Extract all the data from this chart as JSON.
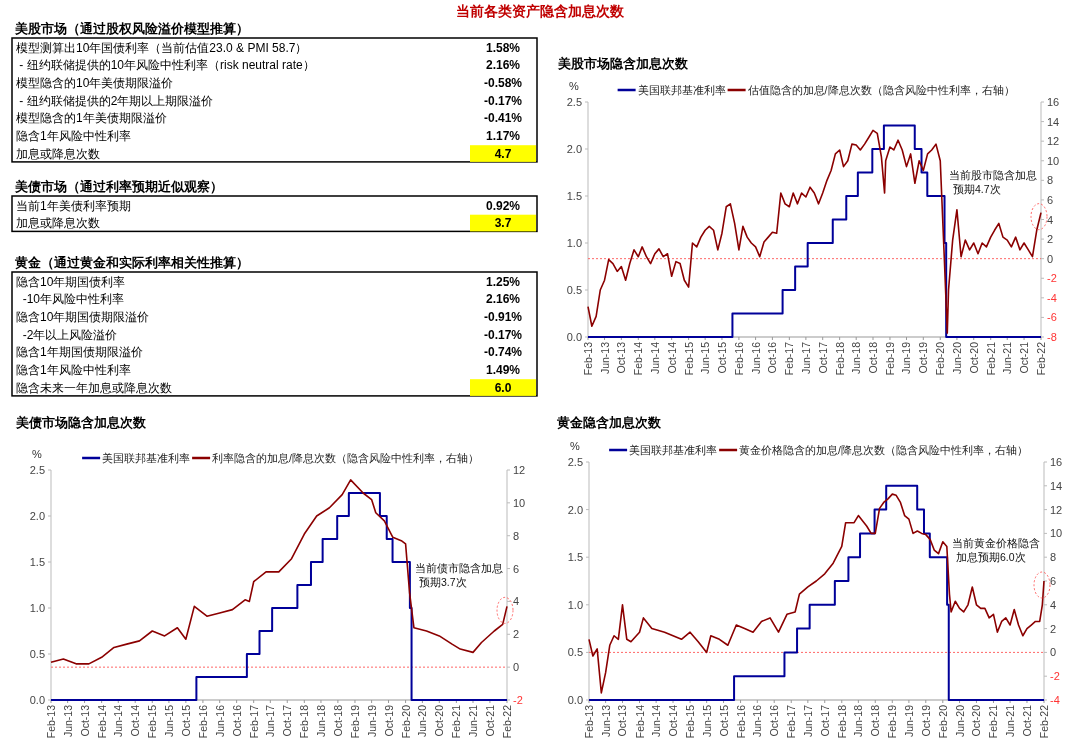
{
  "chart_data": [
    {
      "type": "other",
      "title": "当前各类资产隐含加息次数"
    },
    {
      "type": "other",
      "title": "美股市场（通过股权风险溢价模型推算）",
      "categories": [
        "模型测算出10年国债利率（当前估值23.0 & PMI 58.7）",
        " - 纽约联储提供的10年风险中性利率（risk neutral rate）",
        "模型隐含的10年美债期限溢价",
        " - 纽约联储提供的2年期以上期限溢价",
        "模型隐含的1年美债期限溢价",
        "隐含1年风险中性利率",
        "加息或降息次数"
      ],
      "value_labels": [
        "1.58%",
        "2.16%",
        "-0.58%",
        "-0.17%",
        "-0.41%",
        "1.17%",
        "4.7"
      ],
      "colors": [
        null,
        null,
        null,
        null,
        null,
        null,
        "#ffff00"
      ]
    },
    {
      "type": "other",
      "title": "美债市场（通过利率预期近似观察）",
      "categories": [
        "当前1年美债利率预期",
        "加息或降息次数"
      ],
      "value_labels": [
        "0.92%",
        "3.7"
      ],
      "colors": [
        null,
        "#ffff00"
      ]
    },
    {
      "type": "other",
      "title": "黄金（通过黄金和实际利率相关性推算）",
      "categories": [
        "隐含10年期国债利率",
        "  -10年风险中性利率",
        "隐含10年期国债期限溢价",
        "  -2年以上风险溢价",
        "隐含1年期国债期限溢价",
        "隐含1年风险中性利率",
        "隐含未来一年加息或降息次数"
      ],
      "value_labels": [
        "1.25%",
        "2.16%",
        "-0.91%",
        "-0.17%",
        "-0.74%",
        "1.49%",
        "6.0"
      ],
      "colors": [
        null,
        null,
        null,
        null,
        null,
        null,
        "#ffff00"
      ]
    },
    {
      "type": "line",
      "title": "美股市场隐含加息次数",
      "ylabel": "%",
      "legend": "top",
      "annotations": [
        "当前股市隐含加息预期4.7次"
      ],
      "xlim": [
        "2013-02",
        "2022-02"
      ],
      "xticks": [
        {
          "value": "2013-02",
          "label": "Feb-13"
        },
        {
          "value": "2013-06",
          "label": "Jun-13"
        },
        {
          "value": "2013-10",
          "label": "Oct-13"
        },
        {
          "value": "2014-02",
          "label": "Feb-14"
        },
        {
          "value": "2014-06",
          "label": "Jun-14"
        },
        {
          "value": "2014-10",
          "label": "Oct-14"
        },
        {
          "value": "2015-02",
          "label": "Feb-15"
        },
        {
          "value": "2015-06",
          "label": "Jun-15"
        },
        {
          "value": "2015-10",
          "label": "Oct-15"
        },
        {
          "value": "2016-02",
          "label": "Feb-16"
        },
        {
          "value": "2016-06",
          "label": "Jun-16"
        },
        {
          "value": "2016-10",
          "label": "Oct-16"
        },
        {
          "value": "2017-02",
          "label": "Feb-17"
        },
        {
          "value": "2017-06",
          "label": "Jun-17"
        },
        {
          "value": "2017-10",
          "label": "Oct-17"
        },
        {
          "value": "2018-02",
          "label": "Feb-18"
        },
        {
          "value": "2018-06",
          "label": "Jun-18"
        },
        {
          "value": "2018-10",
          "label": "Oct-18"
        },
        {
          "value": "2019-02",
          "label": "Feb-19"
        },
        {
          "value": "2019-06",
          "label": "Jun-19"
        },
        {
          "value": "2019-10",
          "label": "Oct-19"
        },
        {
          "value": "2020-02",
          "label": "Feb-20"
        },
        {
          "value": "2020-06",
          "label": "Jun-20"
        },
        {
          "value": "2020-10",
          "label": "Oct-20"
        },
        {
          "value": "2021-02",
          "label": "Feb-21"
        },
        {
          "value": "2021-06",
          "label": "Jun-21"
        },
        {
          "value": "2021-10",
          "label": "Oct-21"
        },
        {
          "value": "2022-02",
          "label": "Feb-22"
        }
      ],
      "ylim": [
        0,
        2.5
      ],
      "yticks": [
        {
          "value": 0,
          "label": "0.0"
        },
        0.5,
        {
          "value": 1,
          "label": "1.0"
        },
        1.5,
        {
          "value": 2,
          "label": "2.0"
        },
        2.5
      ],
      "y2lim": [
        -8,
        16
      ],
      "y2ticks": [
        -8,
        -6,
        -4,
        -2,
        0,
        2,
        4,
        6,
        8,
        10,
        12,
        14,
        16
      ],
      "ref_lines": [
        {
          "axis": "y2",
          "value": 0,
          "color": "#ff6666",
          "line_style": "dotted"
        }
      ],
      "series": [
        {
          "name": "美国联邦基准利率",
          "type": "step",
          "color": "#000099",
          "x": [
            "2013-02",
            "2015-12-16",
            "2016-12-14",
            "2017-03-15",
            "2017-06-14",
            "2017-12-13",
            "2018-03-21",
            "2018-06-13",
            "2018-09-26",
            "2018-12-19",
            "2019-07-31",
            "2019-09-18",
            "2019-10-30",
            "2020-03-03",
            "2020-03-15",
            "2022-02"
          ],
          "values": [
            0,
            0.25,
            0.5,
            0.75,
            1.0,
            1.25,
            1.5,
            1.75,
            2.0,
            2.25,
            2.0,
            1.75,
            1.5,
            1.0,
            0,
            0
          ]
        },
        {
          "name": "估值隐含的加息/降息次数（隐含风险中性利率，右轴）",
          "axis": "y2",
          "color": "#8b0000",
          "x": [
            "2013-02",
            "2013-03",
            "2013-04",
            "2013-05",
            "2013-06",
            "2013-07",
            "2013-08",
            "2013-09",
            "2013-10",
            "2013-11",
            "2013-12",
            "2014-01",
            "2014-02",
            "2014-03",
            "2014-04",
            "2014-05",
            "2014-06",
            "2014-07",
            "2014-08",
            "2014-09",
            "2014-10",
            "2014-11",
            "2014-12",
            "2015-01",
            "2015-02",
            "2015-03",
            "2015-04",
            "2015-05",
            "2015-06",
            "2015-07",
            "2015-08",
            "2015-09",
            "2015-10",
            "2015-11",
            "2015-12",
            "2016-01",
            "2016-02",
            "2016-03",
            "2016-04",
            "2016-05",
            "2016-06",
            "2016-07",
            "2016-08",
            "2016-09",
            "2016-10",
            "2016-11",
            "2016-12",
            "2017-01",
            "2017-02",
            "2017-03",
            "2017-04",
            "2017-05",
            "2017-06",
            "2017-07",
            "2017-08",
            "2017-09",
            "2017-10",
            "2017-11",
            "2017-12",
            "2018-01",
            "2018-02",
            "2018-03",
            "2018-04",
            "2018-05",
            "2018-06",
            "2018-07",
            "2018-08",
            "2018-09",
            "2018-10",
            "2018-11",
            "2018-12",
            "2018-12-24",
            "2019-01",
            "2019-02",
            "2019-03",
            "2019-04",
            "2019-05",
            "2019-06",
            "2019-07",
            "2019-08",
            "2019-09",
            "2019-10",
            "2019-11",
            "2019-12",
            "2020-01",
            "2020-02",
            "2020-03",
            "2020-03-23",
            "2020-04",
            "2020-05",
            "2020-06",
            "2020-07",
            "2020-08",
            "2020-09",
            "2020-10",
            "2020-11",
            "2020-12",
            "2021-01",
            "2021-02",
            "2021-03",
            "2021-04",
            "2021-05",
            "2021-06",
            "2021-07",
            "2021-08",
            "2021-09",
            "2021-10",
            "2021-11",
            "2021-12",
            "2022-01",
            "2022-02"
          ],
          "values": [
            -4.9,
            -6.9,
            -5.9,
            -3.2,
            -2.2,
            -0.1,
            -0.5,
            -1.3,
            -0.8,
            -2.2,
            -0.5,
            0.9,
            0.2,
            1.2,
            0.2,
            -0.5,
            0.5,
            1.0,
            0.2,
            0.5,
            -1.8,
            -0.3,
            -0.5,
            -2.2,
            -2.9,
            1.6,
            1.2,
            2.2,
            2.9,
            3.3,
            2.9,
            0.9,
            2.6,
            5.3,
            5.6,
            3.6,
            0.9,
            3.3,
            2.2,
            1.6,
            1.2,
            0.2,
            1.7,
            2.2,
            2.7,
            2.6,
            6.7,
            5.6,
            5.3,
            6.7,
            5.6,
            6.7,
            6.3,
            7.3,
            6.7,
            5.6,
            6.7,
            8.0,
            9.0,
            10.7,
            11.1,
            9.4,
            10.0,
            11.7,
            11.6,
            11.1,
            11.7,
            12.4,
            13.1,
            12.8,
            10.4,
            6.7,
            10.0,
            11.4,
            11.1,
            12.1,
            11.1,
            9.4,
            10.7,
            7.7,
            10.0,
            9.0,
            10.7,
            11.1,
            11.7,
            10.0,
            0.2,
            -7.6,
            -3.2,
            1.9,
            5.0,
            0.2,
            1.9,
            0.9,
            1.6,
            0.5,
            1.6,
            1.2,
            2.2,
            2.9,
            3.6,
            2.2,
            1.9,
            1.2,
            2.2,
            0.9,
            1.6,
            0.9,
            0.2,
            2.9,
            4.7
          ]
        }
      ]
    },
    {
      "type": "line",
      "title": "美债市场隐含加息次数",
      "ylabel": "%",
      "legend": "top",
      "annotations": [
        "当前债市隐含加息预期3.7次"
      ],
      "xlim": [
        "2013-02",
        "2022-02"
      ],
      "xticks": [
        {
          "value": "2013-02",
          "label": "Feb-13"
        },
        {
          "value": "2013-06",
          "label": "Jun-13"
        },
        {
          "value": "2013-10",
          "label": "Oct-13"
        },
        {
          "value": "2014-02",
          "label": "Feb-14"
        },
        {
          "value": "2014-06",
          "label": "Jun-14"
        },
        {
          "value": "2014-10",
          "label": "Oct-14"
        },
        {
          "value": "2015-02",
          "label": "Feb-15"
        },
        {
          "value": "2015-06",
          "label": "Jun-15"
        },
        {
          "value": "2015-10",
          "label": "Oct-15"
        },
        {
          "value": "2016-02",
          "label": "Feb-16"
        },
        {
          "value": "2016-06",
          "label": "Jun-16"
        },
        {
          "value": "2016-10",
          "label": "Oct-16"
        },
        {
          "value": "2017-02",
          "label": "Feb-17"
        },
        {
          "value": "2017-06",
          "label": "Jun-17"
        },
        {
          "value": "2017-10",
          "label": "Oct-17"
        },
        {
          "value": "2018-02",
          "label": "Feb-18"
        },
        {
          "value": "2018-06",
          "label": "Jun-18"
        },
        {
          "value": "2018-10",
          "label": "Oct-18"
        },
        {
          "value": "2019-02",
          "label": "Feb-19"
        },
        {
          "value": "2019-06",
          "label": "Jun-19"
        },
        {
          "value": "2019-10",
          "label": "Oct-19"
        },
        {
          "value": "2020-02",
          "label": "Feb-20"
        },
        {
          "value": "2020-06",
          "label": "Jun-20"
        },
        {
          "value": "2020-10",
          "label": "Oct-20"
        },
        {
          "value": "2021-02",
          "label": "Feb-21"
        },
        {
          "value": "2021-06",
          "label": "Jun-21"
        },
        {
          "value": "2021-10",
          "label": "Oct-21"
        },
        {
          "value": "2022-02",
          "label": "Feb-22"
        }
      ],
      "ylim": [
        0,
        2.5
      ],
      "yticks": [
        {
          "value": 0,
          "label": "0.0"
        },
        0.5,
        {
          "value": 1,
          "label": "1.0"
        },
        1.5,
        {
          "value": 2,
          "label": "2.0"
        },
        2.5
      ],
      "y2lim": [
        -2,
        12
      ],
      "y2ticks": [
        -2,
        0,
        2,
        4,
        6,
        8,
        10,
        12
      ],
      "ref_lines": [
        {
          "axis": "y2",
          "value": 0,
          "color": "#ff6666",
          "line_style": "dotted"
        }
      ],
      "series": [
        {
          "name": "美国联邦基准利率",
          "type": "step",
          "color": "#000099",
          "x": [
            "2013-02",
            "2015-12-16",
            "2016-12-14",
            "2017-03-15",
            "2017-06-14",
            "2017-12-13",
            "2018-03-21",
            "2018-06-13",
            "2018-09-26",
            "2018-12-19",
            "2019-07-31",
            "2019-09-18",
            "2019-10-30",
            "2020-03-03",
            "2020-03-15",
            "2022-02"
          ],
          "values": [
            0,
            0.25,
            0.5,
            0.75,
            1.0,
            1.25,
            1.5,
            1.75,
            2.0,
            2.25,
            2.0,
            1.75,
            1.5,
            1.0,
            0,
            0
          ]
        },
        {
          "name": "利率隐含的加息/降息次数（隐含风险中性利率，右轴）",
          "axis": "y2",
          "color": "#8b0000",
          "x": [
            "2013-02",
            "2013-05",
            "2013-08",
            "2013-11",
            "2014-02",
            "2014-05",
            "2014-08",
            "2014-11",
            "2015-02",
            "2015-05",
            "2015-08",
            "2015-10",
            "2015-12",
            "2016-03",
            "2016-06",
            "2016-09",
            "2016-12",
            "2017-01",
            "2017-02",
            "2017-05",
            "2017-08",
            "2017-11",
            "2018-02",
            "2018-05",
            "2018-08",
            "2018-11",
            "2019-01",
            "2019-04",
            "2019-06",
            "2019-07",
            "2019-09",
            "2019-11",
            "2020-01",
            "2020-02",
            "2020-03",
            "2020-04",
            "2020-07",
            "2020-10",
            "2021-01",
            "2021-03",
            "2021-06",
            "2021-08",
            "2021-11",
            "2022-01",
            "2022-02"
          ],
          "values": [
            0.3,
            0.5,
            0.2,
            0.2,
            0.6,
            1.2,
            1.4,
            1.6,
            2.2,
            1.9,
            2.4,
            1.7,
            3.7,
            3.1,
            3.3,
            3.5,
            4.1,
            4.0,
            5.2,
            5.8,
            5.8,
            6.6,
            8.1,
            9.2,
            9.7,
            10.5,
            11.4,
            10.6,
            10.2,
            9.4,
            8.9,
            7.9,
            7.7,
            7.5,
            4.5,
            2.4,
            2.2,
            1.9,
            1.4,
            1.1,
            0.9,
            1.5,
            2.2,
            2.6,
            3.7
          ]
        }
      ]
    },
    {
      "type": "line",
      "title": "黄金隐含加息次数",
      "ylabel": "%",
      "legend": "top",
      "annotations": [
        "当前黄金价格隐含加息预期6.0次"
      ],
      "xlim": [
        "2013-02",
        "2022-02"
      ],
      "xticks": [
        {
          "value": "2013-02",
          "label": "Feb-13"
        },
        {
          "value": "2013-06",
          "label": "Jun-13"
        },
        {
          "value": "2013-10",
          "label": "Oct-13"
        },
        {
          "value": "2014-02",
          "label": "Feb-14"
        },
        {
          "value": "2014-06",
          "label": "Jun-14"
        },
        {
          "value": "2014-10",
          "label": "Oct-14"
        },
        {
          "value": "2015-02",
          "label": "Feb-15"
        },
        {
          "value": "2015-06",
          "label": "Jun-15"
        },
        {
          "value": "2015-10",
          "label": "Oct-15"
        },
        {
          "value": "2016-02",
          "label": "Feb-16"
        },
        {
          "value": "2016-06",
          "label": "Jun-16"
        },
        {
          "value": "2016-10",
          "label": "Oct-16"
        },
        {
          "value": "2017-02",
          "label": "Feb-17"
        },
        {
          "value": "2017-06",
          "label": "Jun-17"
        },
        {
          "value": "2017-10",
          "label": "Oct-17"
        },
        {
          "value": "2018-02",
          "label": "Feb-18"
        },
        {
          "value": "2018-06",
          "label": "Jun-18"
        },
        {
          "value": "2018-10",
          "label": "Oct-18"
        },
        {
          "value": "2019-02",
          "label": "Feb-19"
        },
        {
          "value": "2019-06",
          "label": "Jun-19"
        },
        {
          "value": "2019-10",
          "label": "Oct-19"
        },
        {
          "value": "2020-02",
          "label": "Feb-20"
        },
        {
          "value": "2020-06",
          "label": "Jun-20"
        },
        {
          "value": "2020-10",
          "label": "Oct-20"
        },
        {
          "value": "2021-02",
          "label": "Feb-21"
        },
        {
          "value": "2021-06",
          "label": "Jun-21"
        },
        {
          "value": "2021-10",
          "label": "Oct-21"
        },
        {
          "value": "2022-02",
          "label": "Feb-22"
        }
      ],
      "ylim": [
        0,
        2.5
      ],
      "yticks": [
        {
          "value": 0,
          "label": "0.0"
        },
        0.5,
        {
          "value": 1,
          "label": "1.0"
        },
        1.5,
        {
          "value": 2,
          "label": "2.0"
        },
        2.5
      ],
      "y2lim": [
        -4,
        16
      ],
      "y2ticks": [
        -4,
        -2,
        0,
        2,
        4,
        6,
        8,
        10,
        12,
        14,
        16
      ],
      "ref_lines": [
        {
          "axis": "y2",
          "value": 0,
          "color": "#ff6666",
          "line_style": "dotted"
        }
      ],
      "series": [
        {
          "name": "美国联邦基准利率",
          "type": "step",
          "color": "#000099",
          "x": [
            "2013-02",
            "2015-12-16",
            "2016-12-14",
            "2017-03-15",
            "2017-06-14",
            "2017-12-13",
            "2018-03-21",
            "2018-06-13",
            "2018-09-26",
            "2018-12-19",
            "2019-07-31",
            "2019-09-18",
            "2019-10-30",
            "2020-03-03",
            "2020-03-15",
            "2022-02"
          ],
          "values": [
            0,
            0.25,
            0.5,
            0.75,
            1.0,
            1.25,
            1.5,
            1.75,
            2.0,
            2.25,
            2.0,
            1.75,
            1.5,
            1.0,
            0,
            0
          ]
        },
        {
          "name": "黄金价格隐含的加息/降息次数（隐含风险中性利率，右轴）",
          "axis": "y2",
          "color": "#8b0000",
          "x": [
            "2013-02",
            "2013-03",
            "2013-04",
            "2013-05",
            "2013-06",
            "2013-07",
            "2013-08",
            "2013-09",
            "2013-10",
            "2013-11",
            "2013-12",
            "2014-02",
            "2014-03",
            "2014-05",
            "2014-08",
            "2014-10",
            "2014-12",
            "2015-02",
            "2015-04",
            "2015-06",
            "2015-07",
            "2015-09",
            "2015-11",
            "2016-01",
            "2016-03",
            "2016-05",
            "2016-07",
            "2016-09",
            "2016-11",
            "2017-01",
            "2017-03",
            "2017-04",
            "2017-06",
            "2017-08",
            "2017-10",
            "2017-12",
            "2018-02",
            "2018-03",
            "2018-05",
            "2018-06",
            "2018-08",
            "2018-09",
            "2018-10",
            "2018-11",
            "2018-12",
            "2019-01",
            "2019-02",
            "2019-03",
            "2019-04",
            "2019-05",
            "2019-06",
            "2019-07",
            "2019-08",
            "2019-09",
            "2019-10",
            "2019-11",
            "2019-12",
            "2020-01",
            "2020-02",
            "2020-03",
            "2020-03-20",
            "2020-04",
            "2020-05",
            "2020-06",
            "2020-07",
            "2020-08",
            "2020-09",
            "2020-10",
            "2020-11",
            "2020-12",
            "2021-01",
            "2021-02",
            "2021-03",
            "2021-04",
            "2021-05",
            "2021-06",
            "2021-07",
            "2021-08",
            "2021-09",
            "2021-10",
            "2021-11",
            "2021-12",
            "2022-01",
            "2022-01-20",
            "2022-02"
          ],
          "values": [
            1.1,
            -0.3,
            0.3,
            -3.4,
            -1.7,
            0.6,
            1.4,
            1.1,
            4.0,
            1.1,
            0.9,
            1.7,
            2.9,
            2.0,
            1.7,
            1.4,
            1.1,
            1.7,
            0.9,
            0.0,
            1.4,
            1.1,
            0.6,
            2.3,
            2.0,
            1.7,
            2.6,
            2.9,
            1.7,
            3.2,
            3.4,
            4.9,
            5.5,
            6.0,
            6.6,
            7.5,
            8.9,
            10.9,
            10.9,
            11.5,
            10.6,
            10.0,
            10.0,
            12.1,
            12.6,
            12.9,
            13.3,
            13.2,
            12.6,
            11.5,
            11.2,
            10.0,
            10.2,
            10.0,
            9.9,
            9.5,
            8.6,
            8.3,
            9.3,
            8.9,
            4.9,
            3.4,
            4.3,
            3.7,
            3.4,
            4.0,
            5.5,
            4.0,
            3.7,
            3.7,
            2.9,
            3.2,
            1.7,
            2.6,
            2.9,
            2.3,
            3.6,
            2.3,
            1.4,
            2.0,
            2.3,
            2.6,
            2.6,
            4.0,
            6.0
          ]
        }
      ]
    }
  ]
}
